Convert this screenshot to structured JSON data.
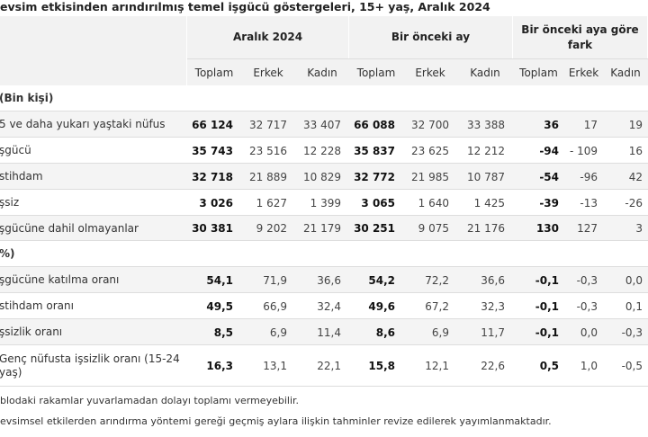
{
  "header": {
    "title": "evsim etkisinden arındırılmış temel işgücü göstergeleri, 15+ yaş, Aralık 2024",
    "groups": [
      "Aralık 2024",
      "Bir önceki ay",
      "Bir önceki aya göre fark"
    ],
    "subcolumns": [
      "Toplam",
      "Erkek",
      "Kadın",
      "Toplam",
      "Erkek",
      "Kadın",
      "Toplam",
      "Erkek",
      "Kadın"
    ]
  },
  "table": {
    "rows": [
      {
        "label": "(Bin kişi)"
      },
      {
        "label": "5 ve daha yukarı yaştaki nüfus",
        "values": [
          "66 124",
          "32 717",
          "33 407",
          "66 088",
          "32 700",
          "33 388",
          "36",
          "17",
          "19"
        ]
      },
      {
        "label": "şgücü",
        "values": [
          "35 743",
          "23 516",
          "12 228",
          "35 837",
          "23 625",
          "12 212",
          "-94",
          "- 109",
          "16"
        ]
      },
      {
        "label": "stihdam",
        "values": [
          "32 718",
          "21 889",
          "10 829",
          "32 772",
          "21 985",
          "10 787",
          "-54",
          "-96",
          "42"
        ]
      },
      {
        "label": "şsiz",
        "values": [
          "3 026",
          "1 627",
          "1 399",
          "3 065",
          "1 640",
          "1 425",
          "-39",
          "-13",
          "-26"
        ]
      },
      {
        "label": "şgücüne dahil olmayanlar",
        "values": [
          "30 381",
          "9 202",
          "21 179",
          "30 251",
          "9 075",
          "21 176",
          "130",
          "127",
          "3"
        ]
      },
      {
        "label": "%)"
      },
      {
        "label": "şgücüne katılma oranı",
        "values": [
          "54,1",
          "71,9",
          "36,6",
          "54,2",
          "72,2",
          "36,6",
          "-0,1",
          "-0,3",
          "0,0"
        ]
      },
      {
        "label": "stihdam oranı",
        "values": [
          "49,5",
          "66,9",
          "32,4",
          "49,6",
          "67,2",
          "32,3",
          "-0,1",
          "-0,3",
          "0,1"
        ]
      },
      {
        "label": "şsizlik oranı",
        "values": [
          "8,5",
          "6,9",
          "11,4",
          "8,6",
          "6,9",
          "11,7",
          "-0,1",
          "0,0",
          "-0,3"
        ]
      },
      {
        "label": "Genç nüfusta işsizlik oranı (15-24 yaş)",
        "values": [
          "16,3",
          "13,1",
          "22,1",
          "15,8",
          "12,1",
          "22,6",
          "0,5",
          "1,0",
          "-0,5"
        ]
      }
    ]
  },
  "footnotes": [
    "blodaki rakamlar yuvarlamadan dolayı toplamı vermeyebilir.",
    "evsimsel etkilerden arındırma yöntemi gereği geçmiş aylara ilişkin tahminler revize edilerek yayımlanmaktadır."
  ]
}
